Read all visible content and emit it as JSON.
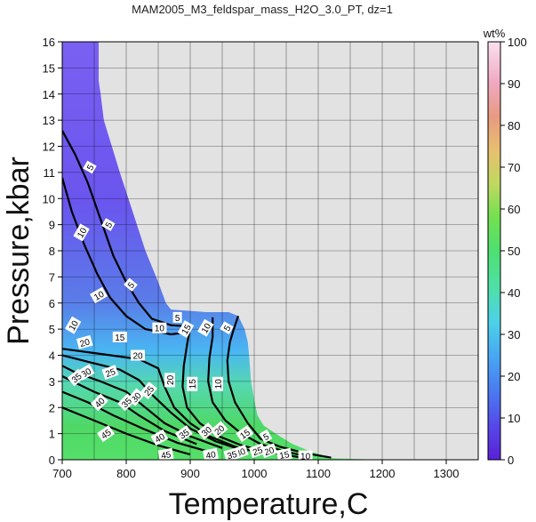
{
  "chart_data": {
    "type": "heatmap",
    "title": "MAM2005_M3_feldspar_mass_H2O_3.0_PT, dz=1",
    "xlabel": "Temperature,C",
    "ylabel": "Pressure,kbar",
    "xlim": [
      700,
      1350
    ],
    "ylim": [
      0,
      16
    ],
    "x_ticks": [
      700,
      800,
      900,
      1000,
      1100,
      1200,
      1300
    ],
    "y_ticks": [
      0,
      1,
      2,
      3,
      4,
      5,
      6,
      7,
      8,
      9,
      10,
      11,
      12,
      13,
      14,
      15,
      16
    ],
    "grid": true,
    "colorbar": {
      "label": "wt%",
      "range": [
        0,
        100
      ],
      "ticks": [
        0,
        10,
        20,
        30,
        40,
        50,
        60,
        70,
        80,
        90,
        100
      ]
    },
    "colors": {
      "background": "#e2e2e2",
      "low": "#6a53f0",
      "mid": "#3aa8f0",
      "high": "#4fe060"
    },
    "field_boundary": [
      [
        703,
        16
      ],
      [
        757,
        16
      ],
      [
        757,
        14.5
      ],
      [
        760,
        14.0
      ],
      [
        765,
        13.0
      ],
      [
        790,
        11.0
      ],
      [
        810,
        9.5
      ],
      [
        830,
        8.0
      ],
      [
        850,
        6.8
      ],
      [
        862,
        6.0
      ],
      [
        870,
        5.75
      ],
      [
        900,
        5.7
      ],
      [
        925,
        5.65
      ],
      [
        960,
        5.65
      ],
      [
        975,
        5.5
      ],
      [
        985,
        5.0
      ],
      [
        990,
        4.5
      ],
      [
        992,
        4.0
      ],
      [
        995,
        3.0
      ],
      [
        1000,
        2.3
      ],
      [
        1005,
        1.7
      ],
      [
        1015,
        1.3
      ],
      [
        1040,
        0.9
      ],
      [
        1060,
        0.6
      ],
      [
        1090,
        0.3
      ],
      [
        1110,
        0.15
      ],
      [
        1125,
        0.05
      ],
      [
        1200,
        0
      ],
      [
        700,
        0
      ],
      [
        700,
        16
      ]
    ],
    "contours": [
      {
        "level": 5,
        "points": [
          [
            700,
            12.6
          ],
          [
            720,
            11.7
          ],
          [
            740,
            10.6
          ],
          [
            760,
            9.2
          ],
          [
            780,
            7.8
          ],
          [
            800,
            6.8
          ],
          [
            820,
            6.0
          ],
          [
            840,
            5.4
          ],
          [
            870,
            5.15
          ],
          [
            900,
            5.1
          ]
        ]
      },
      {
        "level": 10,
        "points": [
          [
            700,
            10.8
          ],
          [
            715,
            9.5
          ],
          [
            735,
            8.2
          ],
          [
            755,
            7.1
          ],
          [
            775,
            6.2
          ],
          [
            800,
            5.5
          ],
          [
            830,
            5.0
          ],
          [
            870,
            4.8
          ],
          [
            900,
            4.9
          ]
        ]
      },
      {
        "level": 5,
        "points": [
          [
            975,
            5.5
          ],
          [
            968,
            5.0
          ],
          [
            962,
            4.5
          ],
          [
            958,
            3.8
          ],
          [
            960,
            3.0
          ],
          [
            970,
            2.2
          ],
          [
            990,
            1.4
          ],
          [
            1010,
            0.8
          ],
          [
            1040,
            0.5
          ],
          [
            1080,
            0.25
          ],
          [
            1120,
            0.08
          ]
        ]
      },
      {
        "level": 10,
        "points": [
          [
            935,
            5.45
          ],
          [
            935,
            4.7
          ],
          [
            930,
            3.9
          ],
          [
            928,
            3.0
          ],
          [
            935,
            2.2
          ],
          [
            955,
            1.5
          ],
          [
            980,
            1.0
          ],
          [
            1010,
            0.6
          ],
          [
            1050,
            0.3
          ],
          [
            1090,
            0.1
          ]
        ]
      },
      {
        "level": 15,
        "points": [
          [
            900,
            5.1
          ],
          [
            895,
            4.4
          ],
          [
            890,
            3.6
          ],
          [
            888,
            2.8
          ],
          [
            895,
            2.0
          ],
          [
            915,
            1.4
          ],
          [
            945,
            0.9
          ],
          [
            980,
            0.55
          ],
          [
            1020,
            0.3
          ],
          [
            1070,
            0.1
          ]
        ]
      },
      {
        "level": 20,
        "points": [
          [
            700,
            4.25
          ],
          [
            760,
            4.05
          ],
          [
            820,
            3.85
          ],
          [
            850,
            3.5
          ],
          [
            860,
            2.8
          ],
          [
            875,
            2.0
          ],
          [
            900,
            1.4
          ],
          [
            930,
            0.9
          ],
          [
            970,
            0.5
          ],
          [
            1020,
            0.2
          ]
        ]
      },
      {
        "level": 25,
        "points": [
          [
            700,
            4.0
          ],
          [
            740,
            3.75
          ],
          [
            790,
            3.45
          ],
          [
            820,
            3.05
          ],
          [
            840,
            2.5
          ],
          [
            870,
            1.8
          ],
          [
            900,
            1.2
          ],
          [
            940,
            0.7
          ],
          [
            990,
            0.3
          ]
        ]
      },
      {
        "level": 30,
        "points": [
          [
            700,
            3.6
          ],
          [
            720,
            3.35
          ],
          [
            760,
            3.0
          ],
          [
            800,
            2.6
          ],
          [
            830,
            2.0
          ],
          [
            860,
            1.4
          ],
          [
            900,
            0.9
          ],
          [
            950,
            0.45
          ]
        ]
      },
      {
        "level": 35,
        "points": [
          [
            700,
            3.2
          ],
          [
            720,
            2.95
          ],
          [
            750,
            2.6
          ],
          [
            790,
            2.2
          ],
          [
            820,
            1.7
          ],
          [
            860,
            1.1
          ],
          [
            910,
            0.6
          ]
        ]
      },
      {
        "level": 40,
        "points": [
          [
            700,
            2.6
          ],
          [
            740,
            2.2
          ],
          [
            780,
            1.7
          ],
          [
            830,
            1.15
          ],
          [
            880,
            0.65
          ],
          [
            930,
            0.3
          ]
        ]
      },
      {
        "level": 45,
        "points": [
          [
            700,
            2.0
          ],
          [
            750,
            1.5
          ],
          [
            800,
            1.0
          ],
          [
            850,
            0.55
          ],
          [
            900,
            0.2
          ]
        ]
      }
    ],
    "contour_labels": [
      {
        "text": "5",
        "x": 743,
        "y": 11.2,
        "angle": -60
      },
      {
        "text": "5",
        "x": 772,
        "y": 9.0,
        "angle": -60
      },
      {
        "text": "5",
        "x": 807,
        "y": 6.7,
        "angle": -50
      },
      {
        "text": "5",
        "x": 880,
        "y": 5.45,
        "angle": 0
      },
      {
        "text": "5",
        "x": 957,
        "y": 5.05,
        "angle": -60
      },
      {
        "text": "5",
        "x": 1018,
        "y": 0.9,
        "angle": -30
      },
      {
        "text": "10",
        "x": 730,
        "y": 8.7,
        "angle": -60
      },
      {
        "text": "10",
        "x": 757,
        "y": 6.3,
        "angle": -30
      },
      {
        "text": "10",
        "x": 717,
        "y": 5.15,
        "angle": -60
      },
      {
        "text": "10",
        "x": 852,
        "y": 5.05,
        "angle": 0
      },
      {
        "text": "10",
        "x": 924,
        "y": 5.05,
        "angle": -60
      },
      {
        "text": "10",
        "x": 943,
        "y": 2.9,
        "angle": -90
      },
      {
        "text": "10",
        "x": 1080,
        "y": 0.15,
        "angle": 0
      },
      {
        "text": "15",
        "x": 790,
        "y": 4.7,
        "angle": 0
      },
      {
        "text": "15",
        "x": 893,
        "y": 5.0,
        "angle": -60
      },
      {
        "text": "15",
        "x": 903,
        "y": 2.9,
        "angle": -90
      },
      {
        "text": "15",
        "x": 1047,
        "y": 0.2,
        "angle": -10
      },
      {
        "text": "15",
        "x": 985,
        "y": 1.0,
        "angle": -35
      },
      {
        "text": "20",
        "x": 735,
        "y": 4.5,
        "angle": -15
      },
      {
        "text": "20",
        "x": 818,
        "y": 4.0,
        "angle": 0
      },
      {
        "text": "20",
        "x": 868,
        "y": 3.05,
        "angle": -90
      },
      {
        "text": "20",
        "x": 945,
        "y": 1.15,
        "angle": -40
      },
      {
        "text": "20",
        "x": 1023,
        "y": 0.35,
        "angle": -20
      },
      {
        "text": "25",
        "x": 775,
        "y": 3.35,
        "angle": -20
      },
      {
        "text": "25",
        "x": 835,
        "y": 2.65,
        "angle": -50
      },
      {
        "text": "25",
        "x": 1005,
        "y": 0.35,
        "angle": -20
      },
      {
        "text": "30",
        "x": 737,
        "y": 3.35,
        "angle": -30
      },
      {
        "text": "30",
        "x": 815,
        "y": 2.4,
        "angle": -50
      },
      {
        "text": "30",
        "x": 925,
        "y": 1.1,
        "angle": -40
      },
      {
        "text": "30",
        "x": 978,
        "y": 0.3,
        "angle": -20
      },
      {
        "text": "35",
        "x": 722,
        "y": 3.15,
        "angle": -40
      },
      {
        "text": "35",
        "x": 800,
        "y": 2.2,
        "angle": -45
      },
      {
        "text": "35",
        "x": 890,
        "y": 1.0,
        "angle": -35
      },
      {
        "text": "35",
        "x": 965,
        "y": 0.2,
        "angle": -15
      },
      {
        "text": "40",
        "x": 758,
        "y": 2.2,
        "angle": -45
      },
      {
        "text": "40",
        "x": 852,
        "y": 0.85,
        "angle": -30
      },
      {
        "text": "40",
        "x": 932,
        "y": 0.2,
        "angle": -10
      },
      {
        "text": "45",
        "x": 768,
        "y": 1.0,
        "angle": -35
      },
      {
        "text": "45",
        "x": 862,
        "y": 0.2,
        "angle": -10
      }
    ]
  }
}
